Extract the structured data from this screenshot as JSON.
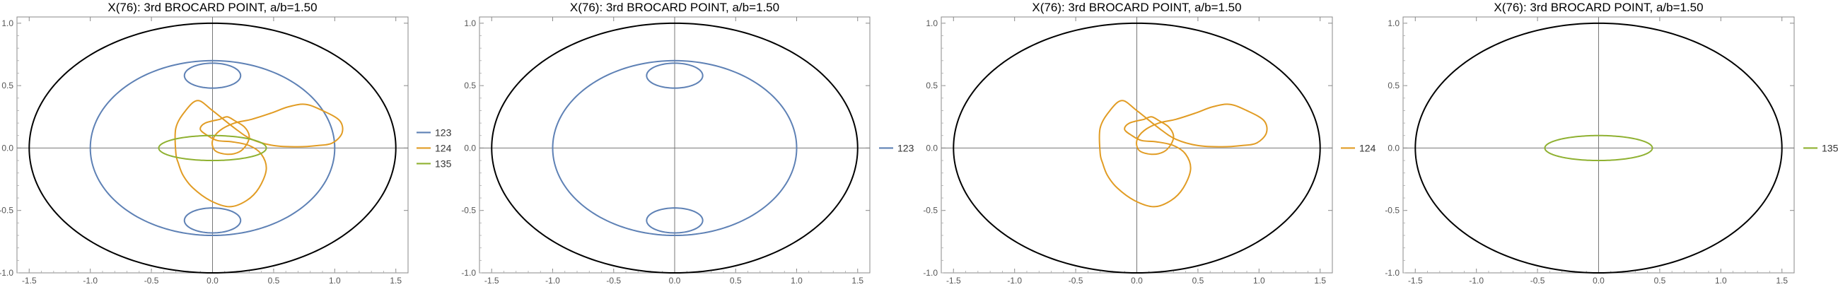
{
  "chart_data": [
    {
      "type": "line",
      "title": "X(76): 3rd BROCARD POINT, a/b=1.50",
      "xlim": [
        -1.6,
        1.6
      ],
      "ylim": [
        -1.0,
        1.05
      ],
      "x_ticks": [
        "-1.5",
        "-1.0",
        "-0.5",
        "0.0",
        "0.5",
        "1.0",
        "1.5"
      ],
      "y_ticks": [
        "1.0",
        "0.5",
        "0.0",
        "-0.5",
        "-1.0"
      ],
      "legend_position": "right",
      "ellipse": {
        "a": 1.5,
        "b": 1.0,
        "color": "#000000"
      },
      "series": [
        {
          "name": "123",
          "color": "#5E81B5",
          "curves": [
            {
              "kind": "ellipse",
              "cx": 0,
              "cy": 0,
              "rx": 1.0,
              "ry": 0.7
            },
            {
              "kind": "loop",
              "cx": 0,
              "cy": 0.58,
              "rx": 0.23,
              "ry": 0.1,
              "tip": 0.7
            },
            {
              "kind": "loop",
              "cx": 0,
              "cy": -0.58,
              "rx": 0.23,
              "ry": 0.1,
              "tip": -0.7
            }
          ]
        },
        {
          "name": "124",
          "color": "#E19C24",
          "points": [
            [
              0.06,
              0.23
            ],
            [
              0.12,
              0.25
            ],
            [
              0.18,
              0.22
            ],
            [
              0.26,
              0.17
            ],
            [
              0.3,
              0.1
            ],
            [
              0.28,
              0.03
            ],
            [
              0.22,
              -0.03
            ],
            [
              0.12,
              -0.05
            ],
            [
              0.02,
              -0.02
            ],
            [
              0.0,
              0.06
            ],
            [
              0.06,
              0.14
            ],
            [
              0.18,
              0.2
            ],
            [
              0.32,
              0.23
            ],
            [
              0.48,
              0.28
            ],
            [
              0.62,
              0.33
            ],
            [
              0.76,
              0.35
            ],
            [
              0.9,
              0.3
            ],
            [
              1.04,
              0.22
            ],
            [
              1.06,
              0.12
            ],
            [
              0.98,
              0.04
            ],
            [
              0.86,
              0.02
            ],
            [
              0.7,
              0.01
            ],
            [
              0.5,
              0.02
            ],
            [
              0.32,
              0.07
            ],
            [
              0.18,
              0.16
            ],
            [
              0.0,
              0.3
            ],
            [
              -0.12,
              0.38
            ],
            [
              -0.22,
              0.3
            ],
            [
              -0.3,
              0.16
            ],
            [
              -0.3,
              -0.04
            ],
            [
              -0.28,
              -0.12
            ],
            [
              -0.24,
              -0.22
            ],
            [
              -0.16,
              -0.32
            ],
            [
              -0.02,
              -0.42
            ],
            [
              0.14,
              -0.47
            ],
            [
              0.28,
              -0.42
            ],
            [
              0.38,
              -0.32
            ],
            [
              0.44,
              -0.17
            ],
            [
              0.4,
              -0.05
            ],
            [
              0.3,
              0.02
            ],
            [
              0.16,
              0.05
            ],
            [
              0.04,
              0.06
            ],
            [
              -0.04,
              0.1
            ],
            [
              -0.1,
              0.15
            ],
            [
              -0.06,
              0.2
            ],
            [
              0.06,
              0.23
            ]
          ]
        },
        {
          "name": "135",
          "color": "#8FB131",
          "curves": [
            {
              "kind": "ellipse",
              "cx": 0,
              "cy": 0,
              "rx": 0.44,
              "ry": 0.1
            }
          ]
        }
      ]
    },
    {
      "type": "line",
      "title": "X(76): 3rd BROCARD POINT, a/b=1.50",
      "xlim": [
        -1.6,
        1.6
      ],
      "ylim": [
        -1.0,
        1.05
      ],
      "x_ticks": [
        "-1.5",
        "-1.0",
        "-0.5",
        "0.0",
        "0.5",
        "1.0",
        "1.5"
      ],
      "y_ticks": [
        "1.0",
        "0.5",
        "0.0",
        "-0.5",
        "-1.0"
      ],
      "legend_position": "right",
      "ellipse": {
        "a": 1.5,
        "b": 1.0,
        "color": "#000000"
      },
      "series": [
        {
          "name": "123",
          "color": "#5E81B5",
          "curves": [
            {
              "kind": "ellipse",
              "cx": 0,
              "cy": 0,
              "rx": 1.0,
              "ry": 0.7
            },
            {
              "kind": "loop",
              "cx": 0,
              "cy": 0.58,
              "rx": 0.23,
              "ry": 0.1,
              "tip": 0.7
            },
            {
              "kind": "loop",
              "cx": 0,
              "cy": -0.58,
              "rx": 0.23,
              "ry": 0.1,
              "tip": -0.7
            }
          ]
        }
      ]
    },
    {
      "type": "line",
      "title": "X(76): 3rd BROCARD POINT, a/b=1.50",
      "xlim": [
        -1.6,
        1.6
      ],
      "ylim": [
        -1.0,
        1.05
      ],
      "x_ticks": [
        "-1.5",
        "-1.0",
        "-0.5",
        "0.0",
        "0.5",
        "1.0",
        "1.5"
      ],
      "y_ticks": [
        "1.0",
        "0.5",
        "0.0",
        "-0.5",
        "-1.0"
      ],
      "legend_position": "right",
      "ellipse": {
        "a": 1.5,
        "b": 1.0,
        "color": "#000000"
      },
      "series": [
        {
          "name": "124",
          "color": "#E19C24",
          "points": [
            [
              0.06,
              0.23
            ],
            [
              0.12,
              0.25
            ],
            [
              0.18,
              0.22
            ],
            [
              0.26,
              0.17
            ],
            [
              0.3,
              0.1
            ],
            [
              0.28,
              0.03
            ],
            [
              0.22,
              -0.03
            ],
            [
              0.12,
              -0.05
            ],
            [
              0.02,
              -0.02
            ],
            [
              0.0,
              0.06
            ],
            [
              0.06,
              0.14
            ],
            [
              0.18,
              0.2
            ],
            [
              0.32,
              0.23
            ],
            [
              0.48,
              0.28
            ],
            [
              0.62,
              0.33
            ],
            [
              0.76,
              0.35
            ],
            [
              0.9,
              0.3
            ],
            [
              1.04,
              0.22
            ],
            [
              1.06,
              0.12
            ],
            [
              0.98,
              0.04
            ],
            [
              0.86,
              0.02
            ],
            [
              0.7,
              0.01
            ],
            [
              0.5,
              0.02
            ],
            [
              0.32,
              0.07
            ],
            [
              0.18,
              0.16
            ],
            [
              0.0,
              0.3
            ],
            [
              -0.12,
              0.38
            ],
            [
              -0.22,
              0.3
            ],
            [
              -0.3,
              0.16
            ],
            [
              -0.3,
              -0.04
            ],
            [
              -0.28,
              -0.12
            ],
            [
              -0.24,
              -0.22
            ],
            [
              -0.16,
              -0.32
            ],
            [
              -0.02,
              -0.42
            ],
            [
              0.14,
              -0.47
            ],
            [
              0.28,
              -0.42
            ],
            [
              0.38,
              -0.32
            ],
            [
              0.44,
              -0.17
            ],
            [
              0.4,
              -0.05
            ],
            [
              0.3,
              0.02
            ],
            [
              0.16,
              0.05
            ],
            [
              0.04,
              0.06
            ],
            [
              -0.04,
              0.1
            ],
            [
              -0.1,
              0.15
            ],
            [
              -0.06,
              0.2
            ],
            [
              0.06,
              0.23
            ]
          ]
        }
      ]
    },
    {
      "type": "line",
      "title": "X(76): 3rd BROCARD POINT, a/b=1.50",
      "xlim": [
        -1.6,
        1.6
      ],
      "ylim": [
        -1.0,
        1.05
      ],
      "x_ticks": [
        "-1.5",
        "-1.0",
        "-0.5",
        "0.0",
        "0.5",
        "1.0",
        "1.5"
      ],
      "y_ticks": [
        "1.0",
        "0.5",
        "0.0",
        "-0.5",
        "-1.0"
      ],
      "legend_position": "right",
      "ellipse": {
        "a": 1.5,
        "b": 1.0,
        "color": "#000000"
      },
      "series": [
        {
          "name": "135",
          "color": "#8FB131",
          "curves": [
            {
              "kind": "ellipse",
              "cx": 0,
              "cy": 0,
              "rx": 0.44,
              "ry": 0.1
            }
          ]
        }
      ]
    }
  ]
}
